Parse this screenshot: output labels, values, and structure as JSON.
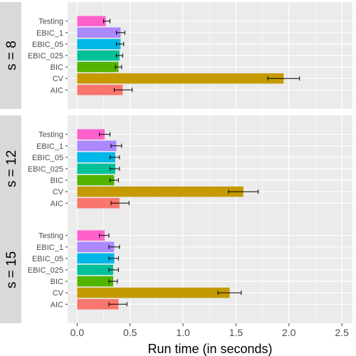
{
  "chart_data": {
    "type": "bar",
    "orientation": "horizontal",
    "xlabel": "Run time (in seconds)",
    "xlim": [
      -0.09,
      2.6
    ],
    "xticks": [
      0.0,
      0.5,
      1.0,
      1.5,
      2.0,
      2.5
    ],
    "xtick_labels": [
      "0.0",
      "0.5",
      "1.0",
      "1.5",
      "2.0",
      "2.5"
    ],
    "grid": true,
    "categories": [
      "Testing",
      "EBIC_1",
      "EBIC_05",
      "EBIC_025",
      "BIC",
      "CV",
      "AIC"
    ],
    "colors": {
      "Testing": "#FF61CC",
      "EBIC_1": "#AC88FF",
      "EBIC_05": "#00B8E7",
      "EBIC_025": "#00C19A",
      "BIC": "#53B400",
      "CV": "#C49A00",
      "AIC": "#F8766D"
    },
    "panels": [
      {
        "label": "s = 8",
        "values": [
          0.27,
          0.41,
          0.41,
          0.4,
          0.39,
          1.95,
          0.43
        ],
        "err_lo": [
          0.25,
          0.37,
          0.37,
          0.37,
          0.36,
          1.8,
          0.35
        ],
        "err_hi": [
          0.31,
          0.45,
          0.44,
          0.43,
          0.42,
          2.1,
          0.52
        ]
      },
      {
        "label": "s = 12",
        "values": [
          0.26,
          0.37,
          0.36,
          0.36,
          0.35,
          1.57,
          0.4
        ],
        "err_lo": [
          0.21,
          0.32,
          0.31,
          0.31,
          0.31,
          1.43,
          0.32
        ],
        "err_hi": [
          0.31,
          0.42,
          0.4,
          0.4,
          0.39,
          1.71,
          0.49
        ]
      },
      {
        "label": "s = 15",
        "values": [
          0.26,
          0.35,
          0.35,
          0.34,
          0.34,
          1.44,
          0.39
        ],
        "err_lo": [
          0.21,
          0.3,
          0.3,
          0.3,
          0.3,
          1.33,
          0.3
        ],
        "err_hi": [
          0.3,
          0.4,
          0.39,
          0.39,
          0.38,
          1.55,
          0.47
        ]
      }
    ]
  }
}
